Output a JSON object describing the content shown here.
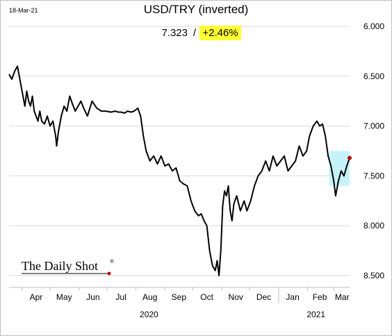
{
  "date_label": "18-Mar-21",
  "readout": {
    "value": "7.323",
    "separator": "/",
    "change": "+2.46%",
    "change_bg": "#ffff33"
  },
  "logo": {
    "text": "The Daily Shot",
    "mark": "®",
    "dot_color": "#c00000"
  },
  "chart_data": {
    "type": "line",
    "title": "USD/TRY (inverted)",
    "ylim": [
      6.0,
      8.5
    ],
    "y_inverted": true,
    "y_ticks": [
      "6.000",
      "6.500",
      "7.000",
      "7.500",
      "8.000",
      "8.500"
    ],
    "y_tick_values": [
      6.0,
      6.5,
      7.0,
      7.5,
      8.0,
      8.5
    ],
    "grid": true,
    "x_range": [
      "2020-03-18",
      "2021-03-18"
    ],
    "x_months": [
      {
        "label": "Apr",
        "date": "2020-04-16"
      },
      {
        "label": "May",
        "date": "2020-05-16"
      },
      {
        "label": "Jun",
        "date": "2020-06-16"
      },
      {
        "label": "Jul",
        "date": "2020-07-16"
      },
      {
        "label": "Aug",
        "date": "2020-08-16"
      },
      {
        "label": "Sep",
        "date": "2020-09-16"
      },
      {
        "label": "Oct",
        "date": "2020-10-16"
      },
      {
        "label": "Nov",
        "date": "2020-11-16"
      },
      {
        "label": "Dec",
        "date": "2020-12-16"
      },
      {
        "label": "Jan",
        "date": "2021-01-16"
      },
      {
        "label": "Feb",
        "date": "2021-02-14"
      },
      {
        "label": "Mar",
        "date": "2021-03-10"
      }
    ],
    "year_labels": [
      {
        "label": "2020",
        "date": "2020-08-15"
      },
      {
        "label": "2021",
        "date": "2021-02-10"
      }
    ],
    "year_divider": "2021-01-01",
    "line_color": "#000000",
    "last_point_color": "#c00000",
    "highlight": {
      "x": [
        "2021-02-24",
        "2021-03-18"
      ],
      "y": [
        7.25,
        7.6
      ],
      "color": "#c6f3f9"
    },
    "series": [
      {
        "x": [
          "2020-03-18",
          "2020-03-21",
          "2020-03-24",
          "2020-03-27",
          "2020-03-30",
          "2020-04-02",
          "2020-04-04",
          "2020-04-06",
          "2020-04-08",
          "2020-04-10",
          "2020-04-12",
          "2020-04-14",
          "2020-04-16",
          "2020-04-18",
          "2020-04-20",
          "2020-04-22",
          "2020-04-25",
          "2020-04-28",
          "2020-05-01",
          "2020-05-04",
          "2020-05-07",
          "2020-05-08",
          "2020-05-10",
          "2020-05-13",
          "2020-05-16",
          "2020-05-19",
          "2020-05-22",
          "2020-05-25",
          "2020-05-28",
          "2020-05-31",
          "2020-06-03",
          "2020-06-06",
          "2020-06-10",
          "2020-06-15",
          "2020-06-20",
          "2020-06-25",
          "2020-06-30",
          "2020-07-05",
          "2020-07-10",
          "2020-07-13",
          "2020-07-16",
          "2020-07-20",
          "2020-07-23",
          "2020-07-27",
          "2020-07-30",
          "2020-08-03",
          "2020-08-06",
          "2020-08-09",
          "2020-08-12",
          "2020-08-16",
          "2020-08-20",
          "2020-08-24",
          "2020-08-28",
          "2020-09-01",
          "2020-09-05",
          "2020-09-09",
          "2020-09-13",
          "2020-09-17",
          "2020-09-21",
          "2020-09-25",
          "2020-09-29",
          "2020-10-03",
          "2020-10-07",
          "2020-10-10",
          "2020-10-13",
          "2020-10-16",
          "2020-10-19",
          "2020-10-22",
          "2020-10-25",
          "2020-10-27",
          "2020-10-29",
          "2020-10-31",
          "2020-11-02",
          "2020-11-04",
          "2020-11-06",
          "2020-11-08",
          "2020-11-10",
          "2020-11-12",
          "2020-11-14",
          "2020-11-17",
          "2020-11-21",
          "2020-11-25",
          "2020-11-28",
          "2020-12-02",
          "2020-12-06",
          "2020-12-10",
          "2020-12-14",
          "2020-12-18",
          "2020-12-22",
          "2020-12-26",
          "2020-12-30",
          "2021-01-03",
          "2021-01-07",
          "2021-01-11",
          "2021-01-15",
          "2021-01-19",
          "2021-01-23",
          "2021-01-27",
          "2021-01-31",
          "2021-02-03",
          "2021-02-07",
          "2021-02-11",
          "2021-02-14",
          "2021-02-17",
          "2021-02-20",
          "2021-02-23",
          "2021-02-26",
          "2021-03-01",
          "2021-03-03",
          "2021-03-06",
          "2021-03-09",
          "2021-03-12",
          "2021-03-15",
          "2021-03-18"
        ],
        "values": [
          6.48,
          6.53,
          6.45,
          6.4,
          6.55,
          6.7,
          6.8,
          6.65,
          6.75,
          6.8,
          6.7,
          6.85,
          6.9,
          6.95,
          6.85,
          6.95,
          6.98,
          6.9,
          7.0,
          6.95,
          7.1,
          7.2,
          7.05,
          6.9,
          6.8,
          6.85,
          6.7,
          6.78,
          6.85,
          6.8,
          6.75,
          6.82,
          6.9,
          6.75,
          6.82,
          6.85,
          6.85,
          6.86,
          6.85,
          6.86,
          6.86,
          6.87,
          6.85,
          6.86,
          6.85,
          6.82,
          6.9,
          7.1,
          7.25,
          7.35,
          7.3,
          7.38,
          7.3,
          7.4,
          7.38,
          7.45,
          7.42,
          7.55,
          7.58,
          7.6,
          7.75,
          7.85,
          7.9,
          7.88,
          7.95,
          8.0,
          8.25,
          8.4,
          8.45,
          8.35,
          8.5,
          8.25,
          7.8,
          7.65,
          7.7,
          7.6,
          7.85,
          7.95,
          7.78,
          7.7,
          7.85,
          7.75,
          7.85,
          7.75,
          7.6,
          7.5,
          7.45,
          7.35,
          7.45,
          7.3,
          7.4,
          7.35,
          7.3,
          7.45,
          7.4,
          7.35,
          7.2,
          7.3,
          7.25,
          7.1,
          7.0,
          6.95,
          7.0,
          6.98,
          7.1,
          7.3,
          7.4,
          7.55,
          7.7,
          7.55,
          7.45,
          7.5,
          7.4,
          7.32
        ]
      }
    ]
  }
}
